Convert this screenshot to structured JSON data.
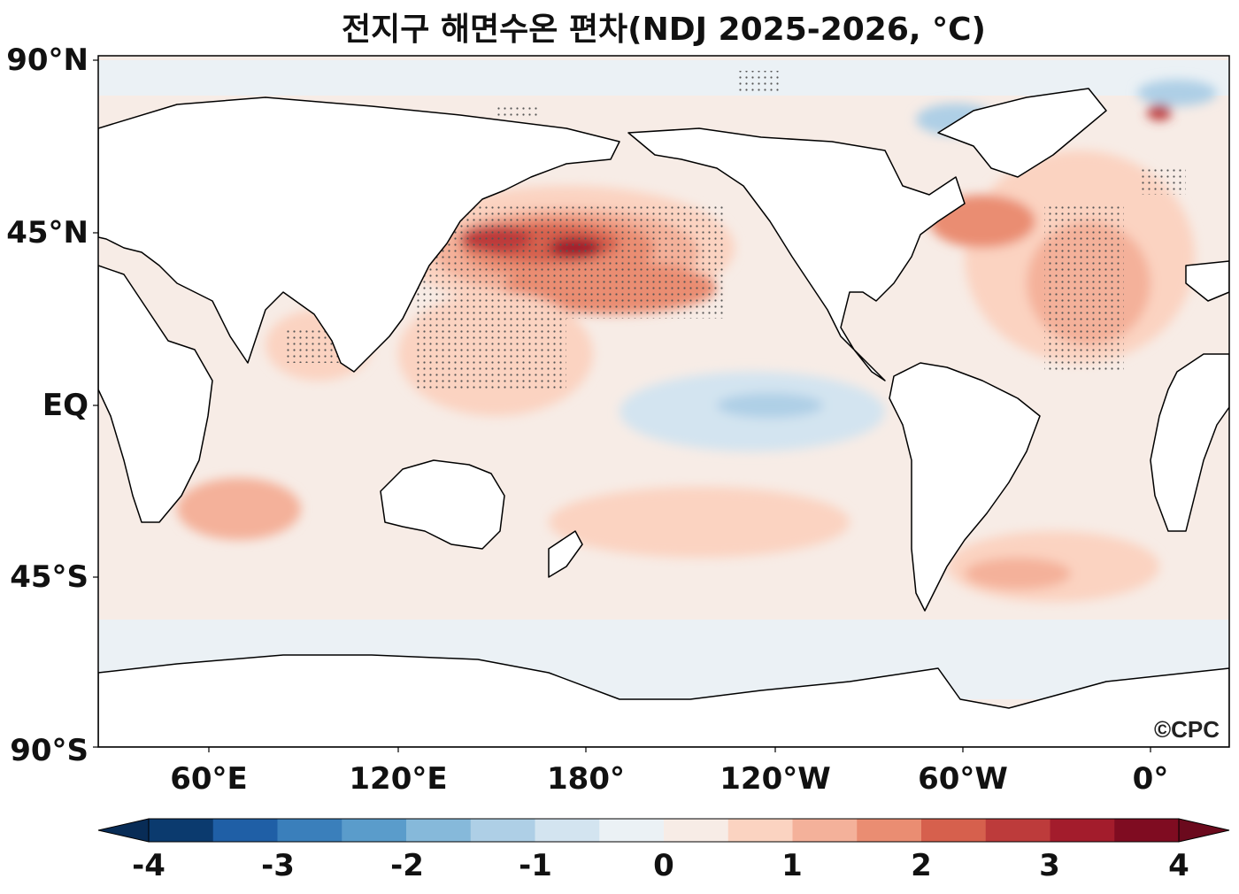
{
  "title": "전지구 해면수온 편차(NDJ 2025-2026, °C)",
  "watermark": "©CPC",
  "lat_labels": [
    "90°N",
    "45°N",
    "EQ",
    "45°S",
    "90°S"
  ],
  "lon_labels": [
    "60°E",
    "120°E",
    "180°",
    "120°W",
    "60°W",
    "0°"
  ],
  "colorbar": {
    "ticks": [
      "-4",
      "-3",
      "-2",
      "-1",
      "0",
      "1",
      "2",
      "3",
      "4"
    ],
    "colors": [
      "#0b3a6e",
      "#1f5fa6",
      "#3a7fbb",
      "#5a9ccb",
      "#86b9da",
      "#aecfe6",
      "#d3e4f0",
      "#ebf1f5",
      "#f7ece6",
      "#fbd3c1",
      "#f4b19a",
      "#ea8d72",
      "#d6604d",
      "#bd3b3b",
      "#a31c2c",
      "#7f0c21"
    ],
    "under_color": "#082c56",
    "over_color": "#6b0a1d"
  },
  "colors": {
    "ocean_base": "#f7ece6",
    "land": "#ffffff",
    "coast": "#000000"
  }
}
